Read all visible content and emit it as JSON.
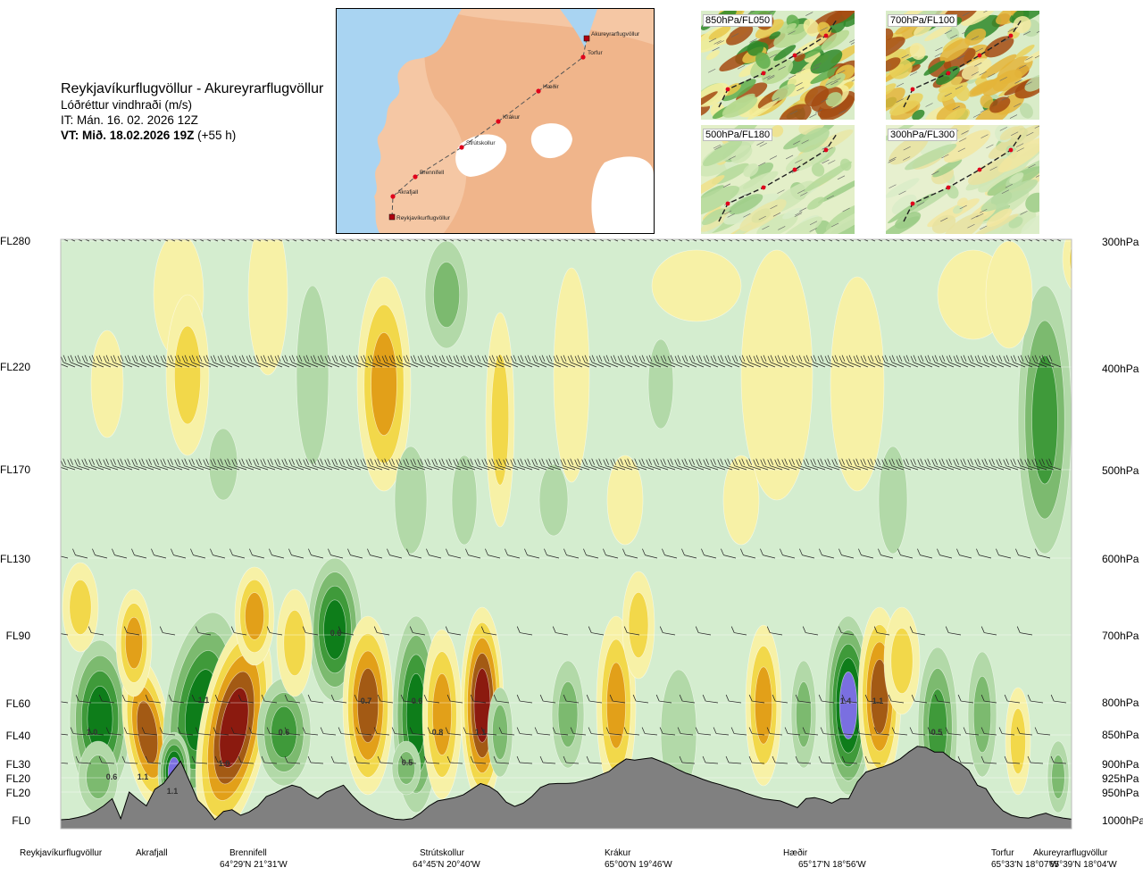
{
  "header": {
    "route": "Reykjavíkurflugvöllur - Akureyrarflugvöllur",
    "variable": "Lóðréttur vindhraði (m/s)",
    "issue_time": "IT: Mán. 16. 02. 2026 12Z",
    "valid_time": "VT: Mið. 18.02.2026 19Z",
    "lead": "(+55 h)"
  },
  "route_map": {
    "waypoints": [
      "Reykjavíkurflugvöllur",
      "Akrafjall",
      "Brennifell",
      "Strútskollur",
      "Krákur",
      "Hæðir",
      "Torfur",
      "Akureyrarflugvöllur"
    ],
    "colors": {
      "sea": "#a9d4f2",
      "land": "#f5c7a4",
      "highland": "#eba577",
      "ice": "#ffffff",
      "track": "#555555",
      "waypoint": "#e0001b"
    }
  },
  "mini_maps": [
    {
      "label": "850hPa/FL050"
    },
    {
      "label": "700hPa/FL100"
    },
    {
      "label": "500hPa/FL180"
    },
    {
      "label": "300hPa/FL300"
    }
  ],
  "colors": {
    "strong_down": "#8b1a0f",
    "moderate_down": "#a35a14",
    "down": "#e2a019",
    "weak_down": "#f2d84a",
    "slight_down": "#f7f1a6",
    "neutral": "#d4edcf",
    "slight_up": "#b2d9a8",
    "weak_up": "#7cba6f",
    "up": "#3f9a3a",
    "strong_up": "#0e7d1a",
    "very_strong_up": "#7a6fe0",
    "terrain": "#808080"
  },
  "chart_data": {
    "type": "heatmap",
    "title": "Lóðréttur vindhraði (m/s)",
    "y_left_labels": [
      "FL280",
      "FL220",
      "FL170",
      "FL130",
      "FL90",
      "FL60",
      "FL40",
      "FL30",
      "FL20",
      "FL20",
      "FL0"
    ],
    "y_right_labels": [
      "300hPa",
      "400hPa",
      "500hPa",
      "600hPa",
      "700hPa",
      "800hPa",
      "850hPa",
      "900hPa",
      "925hPa",
      "950hPa",
      "1000hPa"
    ],
    "pressure_levels_hpa": [
      300,
      400,
      500,
      600,
      700,
      800,
      850,
      900,
      925,
      950,
      1000
    ],
    "stations": [
      {
        "name": "Reykjavíkurflugvöllur",
        "coord": ""
      },
      {
        "name": "Akrafjall",
        "coord": ""
      },
      {
        "name": "Brennifell",
        "coord": "64°29'N 21°31'W"
      },
      {
        "name": "Strútskollur",
        "coord": "64°45'N 20°40'W"
      },
      {
        "name": "Krákur",
        "coord": "65°00'N 19°46'W"
      },
      {
        "name": "Hæðir",
        "coord": "65°17'N 18°56'W"
      },
      {
        "name": "Torfur",
        "coord": "65°33'N 18°07'W"
      },
      {
        "name": "Akureyrarflugvöllur",
        "coord": "65°39'N 18°04'W"
      }
    ],
    "annotations": [
      "1.0",
      "0.6",
      "1.1",
      "1.1",
      "1.1",
      "1.0",
      "0.6",
      "0.6",
      "0.7",
      "0.6",
      "0.5",
      "0.8",
      "1.1",
      "1.4",
      "1.1",
      "0.5"
    ],
    "terrain_profile_hpa": [
      1000,
      999,
      996,
      992,
      985,
      975,
      962,
      998,
      950,
      963,
      975,
      945,
      935,
      915,
      896,
      930,
      965,
      980,
      1000,
      985,
      982,
      992,
      986,
      976,
      958,
      952,
      944,
      938,
      942,
      954,
      962,
      950,
      944,
      938,
      956,
      972,
      982,
      990,
      995,
      999,
      1000,
      998,
      988,
      975,
      966,
      963,
      960,
      955,
      945,
      935,
      940,
      950,
      968,
      976,
      970,
      958,
      942,
      936,
      935,
      935,
      934,
      930,
      926,
      920,
      914,
      902,
      892,
      894,
      892,
      890,
      896,
      902,
      910,
      917,
      922,
      928,
      933,
      937,
      942,
      946,
      952,
      957,
      962,
      964,
      966,
      972,
      978,
      962,
      960,
      964,
      970,
      962,
      962,
      932,
      915,
      910,
      906,
      900,
      892,
      880,
      870,
      872,
      880,
      880,
      892,
      900,
      912,
      938,
      944,
      968,
      984,
      992,
      996,
      997,
      992,
      988,
      994,
      997,
      999
    ]
  }
}
